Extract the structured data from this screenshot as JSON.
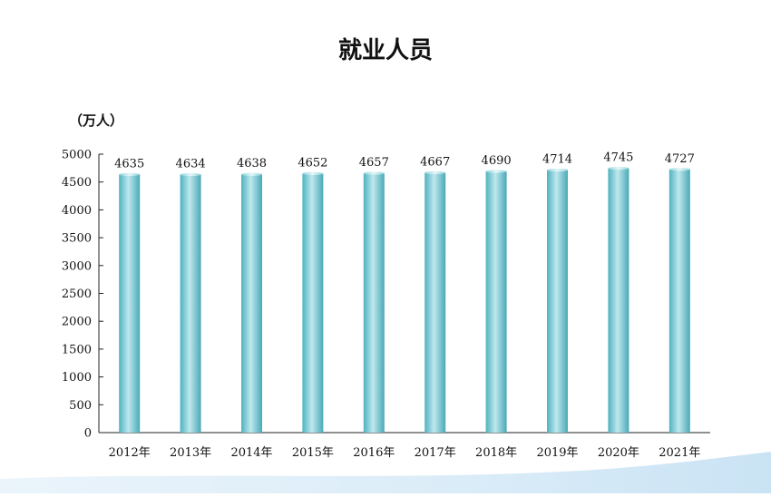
{
  "chart_data": {
    "type": "bar",
    "title": "就业人员",
    "unit_label": "（万人）",
    "categories": [
      "2012年",
      "2013年",
      "2014年",
      "2015年",
      "2016年",
      "2017年",
      "2018年",
      "2019年",
      "2020年",
      "2021年"
    ],
    "values": [
      4635,
      4634,
      4638,
      4652,
      4657,
      4667,
      4690,
      4714,
      4745,
      4727
    ],
    "value_labels": [
      "4635",
      "4634",
      "4638",
      "4652",
      "4657",
      "4667",
      "4690",
      "4714",
      "4745",
      "4727"
    ],
    "yticks": [
      0,
      500,
      1000,
      1500,
      2000,
      2500,
      3000,
      3500,
      4000,
      4500,
      5000
    ],
    "ytick_labels": [
      "0",
      "500",
      "1000",
      "1500",
      "2000",
      "2500",
      "3000",
      "3500",
      "4000",
      "4500",
      "5000"
    ],
    "ylim": [
      0,
      5000
    ],
    "grid": false,
    "bar_color": "#7fc9d4"
  }
}
